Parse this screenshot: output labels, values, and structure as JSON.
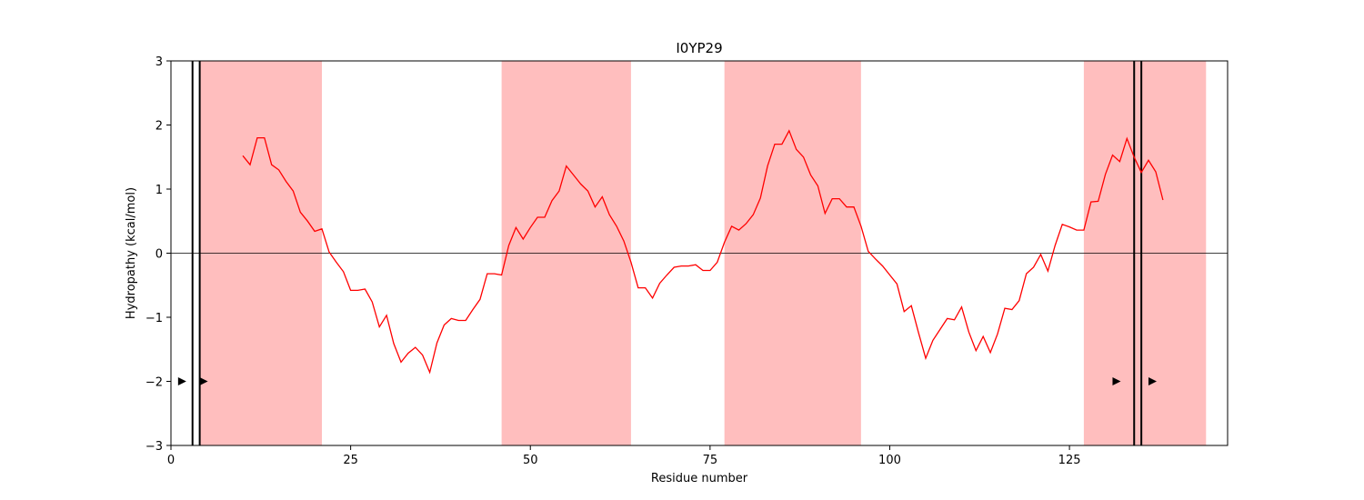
{
  "chart_data": {
    "type": "line",
    "title": "I0YP29",
    "xlabel": "Residue number",
    "ylabel": "Hydropathy (kcal/mol)",
    "xlim": [
      0,
      147
    ],
    "ylim": [
      -3,
      3
    ],
    "xticks": [
      0,
      25,
      50,
      75,
      100,
      125
    ],
    "yticks": [
      -3,
      -2,
      -1,
      0,
      1,
      2,
      3
    ],
    "ytick_labels": [
      "−3",
      "−2",
      "−1",
      "0",
      "1",
      "2",
      "3"
    ],
    "grid": false,
    "colors": {
      "line": "#ff0000",
      "band": "#ffbebe",
      "marker": "#000000",
      "vline": "#000000",
      "zero": "#000000"
    },
    "shaded_regions": [
      [
        4,
        21
      ],
      [
        46,
        64
      ],
      [
        77,
        96
      ],
      [
        127,
        144
      ]
    ],
    "vertical_lines": [
      3,
      4,
      134,
      135
    ],
    "markers": [
      {
        "x": 1.5,
        "y": -2,
        "shape": "triangle-right"
      },
      {
        "x": 4.5,
        "y": -2,
        "shape": "triangle-right"
      },
      {
        "x": 131.5,
        "y": -2,
        "shape": "triangle-right"
      },
      {
        "x": 136.5,
        "y": -2,
        "shape": "triangle-right"
      }
    ],
    "series": [
      {
        "x": [
          10,
          11,
          12,
          13,
          14,
          15,
          16,
          17,
          18,
          19,
          20,
          21,
          22,
          23,
          24,
          25,
          26,
          27,
          28,
          29,
          30,
          31,
          32,
          33,
          34,
          35,
          36,
          37,
          38,
          39,
          40,
          41,
          42,
          43,
          44,
          45,
          46,
          47,
          48,
          49,
          50,
          51,
          52,
          53,
          54,
          55,
          56,
          57,
          58,
          59,
          60,
          61,
          62,
          63,
          64,
          65,
          66,
          67,
          68,
          69,
          70,
          71,
          72,
          73,
          74,
          75,
          76,
          77,
          78,
          79,
          80,
          81,
          82,
          83,
          84,
          85,
          86,
          87,
          88,
          89,
          90,
          91,
          92,
          93,
          94,
          95,
          96,
          97,
          98,
          99,
          100,
          101,
          102,
          103,
          104,
          105,
          106,
          107,
          108,
          109,
          110,
          111,
          112,
          113,
          114,
          115,
          116,
          117,
          118,
          119,
          120,
          121,
          122,
          123,
          124,
          125,
          126,
          127,
          128,
          129,
          130,
          131,
          132,
          133,
          134,
          135,
          136,
          137,
          138
        ],
        "y": [
          1.52,
          1.38,
          1.8,
          1.8,
          1.38,
          1.3,
          1.12,
          0.97,
          0.64,
          0.5,
          0.34,
          0.38,
          0.02,
          -0.14,
          -0.29,
          -0.58,
          -0.58,
          -0.56,
          -0.76,
          -1.15,
          -0.97,
          -1.41,
          -1.7,
          -1.56,
          -1.47,
          -1.59,
          -1.86,
          -1.4,
          -1.12,
          -1.02,
          -1.05,
          -1.05,
          -0.88,
          -0.72,
          -0.32,
          -0.32,
          -0.34,
          0.12,
          0.4,
          0.22,
          0.4,
          0.56,
          0.56,
          0.82,
          0.97,
          1.36,
          1.22,
          1.08,
          0.97,
          0.72,
          0.88,
          0.6,
          0.42,
          0.19,
          -0.14,
          -0.54,
          -0.54,
          -0.7,
          -0.47,
          -0.34,
          -0.22,
          -0.2,
          -0.2,
          -0.18,
          -0.27,
          -0.27,
          -0.14,
          0.17,
          0.42,
          0.36,
          0.46,
          0.6,
          0.86,
          1.36,
          1.7,
          1.7,
          1.91,
          1.62,
          1.5,
          1.22,
          1.05,
          0.62,
          0.85,
          0.85,
          0.72,
          0.72,
          0.42,
          0.03,
          -0.09,
          -0.2,
          -0.34,
          -0.48,
          -0.91,
          -0.82,
          -1.24,
          -1.64,
          -1.36,
          -1.19,
          -1.02,
          -1.04,
          -0.84,
          -1.23,
          -1.52,
          -1.3,
          -1.55,
          -1.26,
          -0.86,
          -0.88,
          -0.74,
          -0.32,
          -0.22,
          -0.02,
          -0.28,
          0.12,
          0.45,
          0.41,
          0.36,
          0.36,
          0.8,
          0.81,
          1.23,
          1.53,
          1.43,
          1.79,
          1.5,
          1.26,
          1.45,
          1.27,
          0.83
        ]
      }
    ]
  }
}
